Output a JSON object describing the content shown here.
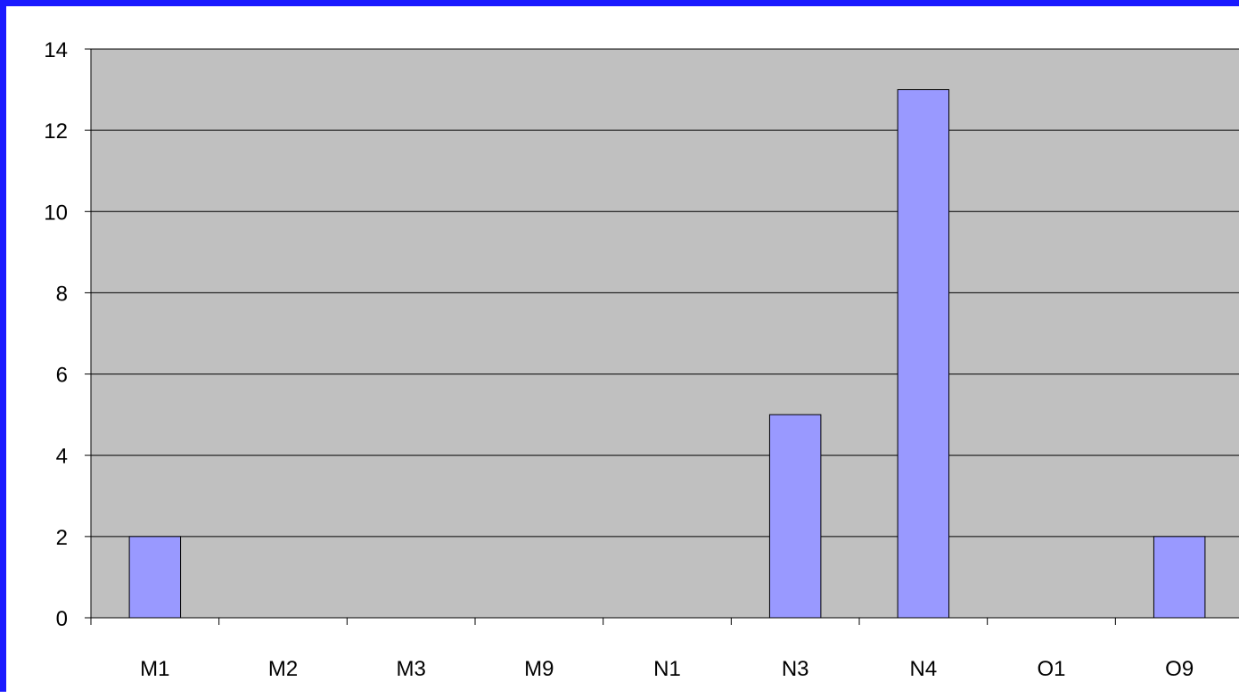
{
  "chart_data": {
    "type": "bar",
    "categories": [
      "M1",
      "M2",
      "M3",
      "M9",
      "N1",
      "N3",
      "N4",
      "O1",
      "O9"
    ],
    "values": [
      2,
      0,
      0,
      0,
      0,
      5,
      13,
      0,
      2
    ],
    "ylim": [
      0,
      14
    ],
    "yticks": [
      0,
      2,
      4,
      6,
      8,
      10,
      12,
      14
    ],
    "title": "",
    "xlabel": "",
    "ylabel": "",
    "grid": true,
    "legend": "none",
    "colors": {
      "plot_background": "#c0c0c0",
      "bar_fill": "#9999ff",
      "bar_stroke": "#000000",
      "gridline": "#000000",
      "frame_border": "#1a1aff"
    }
  }
}
